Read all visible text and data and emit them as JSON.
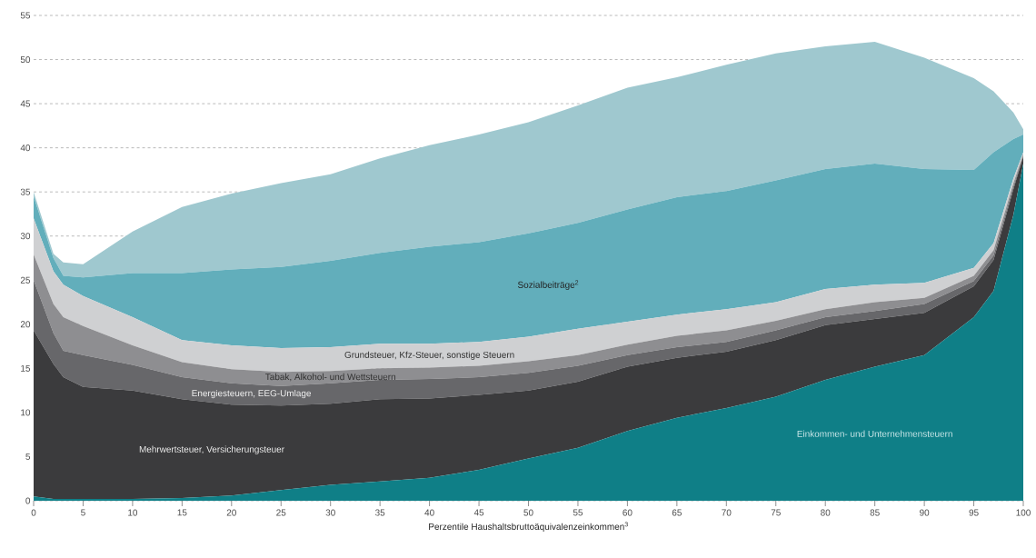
{
  "chart_data": {
    "type": "area",
    "stacked": true,
    "xlabel": "Perzentile Haushaltsbruttoäquivalenzeinkommen$^{3}$",
    "x": [
      0,
      2,
      3,
      5,
      10,
      15,
      20,
      25,
      30,
      35,
      40,
      45,
      50,
      55,
      60,
      65,
      70,
      75,
      80,
      85,
      90,
      95,
      97,
      99,
      100
    ],
    "series": [
      {
        "name": "Einkommen- und Unternehmensteuern",
        "color": "#0f7f87",
        "values": [
          0.5,
          0.2,
          0.2,
          0.2,
          0.2,
          0.3,
          0.6,
          1.2,
          1.8,
          2.2,
          2.6,
          3.5,
          4.8,
          6,
          7.9,
          9.4,
          10.5,
          11.8,
          13.7,
          15.2,
          16.5,
          20.8,
          23.8,
          32.4,
          38.2
        ]
      },
      {
        "name": "Mehrwertsteuer, Versicherungsteuer",
        "color": "#3b3b3d",
        "values": [
          18.8,
          15.3,
          13.8,
          12.7,
          12.3,
          11.2,
          10.3,
          9.6,
          9.2,
          9.3,
          9.0,
          8.5,
          7.7,
          7.5,
          7.3,
          6.8,
          6.4,
          6.4,
          6.2,
          5.4,
          4.8,
          3.5,
          3.5,
          2.9,
          0.8
        ]
      },
      {
        "name": "Energiesteuern, EEG-Umlage",
        "color": "#67676a",
        "values": [
          5.7,
          3.5,
          3.0,
          3.6,
          2.9,
          2.5,
          2.4,
          2.2,
          2.3,
          2.2,
          2.2,
          2.0,
          2.0,
          1.8,
          1.3,
          1.2,
          1.1,
          1.1,
          0.9,
          0.9,
          1.0,
          0.6,
          0.5,
          0.3,
          0.1
        ]
      },
      {
        "name": "Tabak, Alkohol- und Wettsteuern",
        "color": "#8e8e91",
        "values": [
          2.9,
          3.3,
          3.8,
          3.3,
          2.2,
          1.7,
          1.6,
          1.6,
          1.4,
          1.3,
          1.3,
          1.3,
          1.3,
          1.2,
          1.2,
          1.3,
          1.3,
          1.1,
          0.9,
          1.0,
          0.7,
          0.6,
          0.6,
          0.4,
          0.2
        ]
      },
      {
        "name": "Grundsteuer, Kfz-Steuer, sonstige Steuern",
        "color": "#cfd0d2",
        "values": [
          4.1,
          3.7,
          3.7,
          3.4,
          3.2,
          2.5,
          2.7,
          2.7,
          2.7,
          2.8,
          2.7,
          2.7,
          2.8,
          3.0,
          2.6,
          2.4,
          2.4,
          2.1,
          2.3,
          2.0,
          1.7,
          0.9,
          0.8,
          0.5,
          0.2
        ]
      },
      {
        "name": "Sozialbeiträge$^{2}$",
        "color": "#62aebb",
        "values": [
          2.5,
          1.5,
          1.0,
          2.1,
          5.0,
          7.6,
          8.6,
          9.2,
          9.8,
          10.3,
          11.0,
          11.3,
          11.7,
          12.0,
          12.7,
          13.3,
          13.4,
          13.8,
          13.6,
          13.7,
          12.9,
          11.1,
          10.3,
          4.5,
          2.0
        ]
      },
      {
        "color": "#9fc8cf",
        "values": [
          0.5,
          0.5,
          1.5,
          1.5,
          4.7,
          7.5,
          8.6,
          9.5,
          9.8,
          10.7,
          11.5,
          12.2,
          12.6,
          13.3,
          13.8,
          13.6,
          14.3,
          14.4,
          13.9,
          13.8,
          12.6,
          10.4,
          6.9,
          3.0,
          0.6
        ]
      }
    ],
    "xlim": [
      0,
      100
    ],
    "ylim": [
      0,
      55
    ],
    "xticks": [
      0,
      5,
      10,
      15,
      20,
      25,
      30,
      35,
      40,
      45,
      50,
      55,
      60,
      65,
      70,
      75,
      80,
      85,
      90,
      95,
      100
    ],
    "yticks": [
      0,
      5,
      10,
      15,
      20,
      25,
      30,
      35,
      40,
      45,
      50,
      55
    ],
    "grid": "y"
  }
}
